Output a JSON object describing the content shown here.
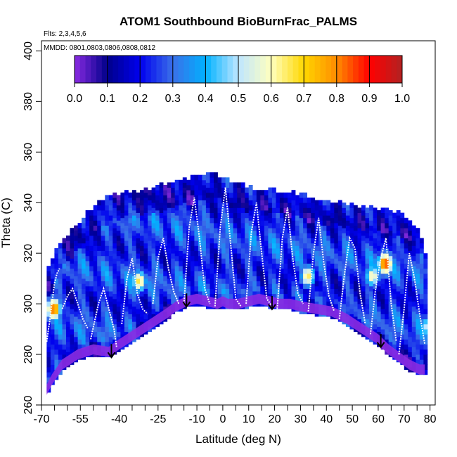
{
  "chart_data": {
    "type": "heatmap",
    "title": "ATOM1 Southbound BioBurnFrac_PALMS",
    "flights_note": "Flts: 2,3,4,5,6",
    "dates_note": "MMDD: 0801,0803,0806,0808,0812",
    "xlabel": "Latitude (deg N)",
    "ylabel": "Theta (C)",
    "xlim": [
      -70,
      82
    ],
    "ylim": [
      260,
      404
    ],
    "x_ticks": [
      -70,
      -55,
      -40,
      -25,
      -10,
      0,
      10,
      20,
      30,
      40,
      50,
      60,
      70,
      80
    ],
    "x_minor_ticks": [
      -65,
      -60,
      -50,
      -45,
      -35,
      -30,
      -20,
      -15,
      -5,
      5,
      15,
      25,
      35,
      45,
      55,
      65,
      75
    ],
    "y_ticks": [
      260,
      280,
      300,
      320,
      340,
      360,
      380,
      400
    ],
    "colorbar": {
      "ticks": [
        0.0,
        0.1,
        0.2,
        0.3,
        0.4,
        0.5,
        0.6,
        0.7,
        0.8,
        0.9,
        1.0
      ],
      "tick_labels": [
        "0.0",
        "0.1",
        "0.2",
        "0.3",
        "0.4",
        "0.5",
        "0.6",
        "0.7",
        "0.8",
        "0.9",
        "1.0"
      ],
      "colors": [
        "#8a2be2",
        "#00008b",
        "#0000ee",
        "#3a6fe8",
        "#00b2ff",
        "#bfe6ff",
        "#ffffbf",
        "#ffd700",
        "#ff8c00",
        "#ff0000",
        "#b22222"
      ]
    },
    "ground_profile": {
      "lat": [
        -68,
        -66,
        -62,
        -56,
        -50,
        -44,
        -40,
        -34,
        -28,
        -22,
        -18,
        -14,
        -10,
        -6,
        -2,
        0,
        2,
        6,
        10,
        14,
        18,
        22,
        26,
        30,
        36,
        42,
        48,
        54,
        60,
        64,
        68,
        72,
        76,
        78
      ],
      "theta": [
        264,
        268,
        274,
        278,
        280,
        279,
        282,
        286,
        290,
        294,
        297,
        299,
        300,
        299,
        298,
        299,
        298,
        298,
        299,
        300,
        299,
        298,
        298,
        297,
        296,
        295,
        292,
        288,
        284,
        280,
        277,
        274,
        272,
        272
      ]
    },
    "top_profile": {
      "lat": [
        -68,
        -66,
        -64,
        -60,
        -56,
        -52,
        -48,
        -44,
        -40,
        -36,
        -32,
        -28,
        -24,
        -20,
        -16,
        -12,
        -8,
        -4,
        0,
        4,
        8,
        12,
        16,
        20,
        24,
        28,
        32,
        36,
        40,
        44,
        48,
        52,
        56,
        60,
        64,
        68,
        72,
        76,
        78
      ],
      "theta": [
        312,
        317,
        322,
        326,
        331,
        336,
        339,
        342,
        343,
        344,
        344,
        345,
        346,
        347,
        348,
        349,
        350,
        351,
        349,
        347,
        346,
        345,
        345,
        344,
        344,
        343,
        342,
        341,
        340,
        340,
        339,
        338,
        338,
        337,
        336,
        335,
        333,
        328,
        320
      ]
    },
    "hotspots": [
      {
        "lat": -66,
        "theta": 297,
        "value": 0.85
      },
      {
        "lat": -33,
        "theta": 308,
        "value": 0.68
      },
      {
        "lat": 32,
        "theta": 310,
        "value": 0.66
      },
      {
        "lat": 57,
        "theta": 310,
        "value": 0.62
      },
      {
        "lat": 62,
        "theta": 315,
        "value": 0.88
      },
      {
        "lat": 79,
        "theta": 290,
        "value": 0.62
      }
    ],
    "flight_tracks": [
      {
        "lat": [
          -68,
          -67,
          -66,
          -65,
          -64,
          -63
        ],
        "theta": [
          285,
          292,
          300,
          308,
          312,
          314
        ]
      },
      {
        "lat": [
          -62,
          -60,
          -58,
          -56,
          -54,
          -52
        ],
        "theta": [
          298,
          303,
          306,
          300,
          294,
          290
        ]
      },
      {
        "lat": [
          -51,
          -48,
          -46,
          -44,
          -42,
          -41
        ],
        "theta": [
          286,
          300,
          306,
          298,
          290,
          283
        ]
      },
      {
        "lat": [
          -39,
          -37,
          -35,
          -33,
          -31,
          -29
        ],
        "theta": [
          292,
          310,
          318,
          304,
          298,
          296
        ]
      },
      {
        "lat": [
          -27,
          -25,
          -23,
          -21,
          -19,
          -17
        ],
        "theta": [
          300,
          318,
          326,
          314,
          305,
          300
        ]
      },
      {
        "lat": [
          -15,
          -13,
          -11,
          -9,
          -7,
          -5
        ],
        "theta": [
          300,
          330,
          342,
          326,
          306,
          300
        ]
      },
      {
        "lat": [
          -3,
          -1,
          1,
          3,
          5,
          7
        ],
        "theta": [
          299,
          330,
          346,
          324,
          302,
          299
        ]
      },
      {
        "lat": [
          9,
          11,
          13,
          15,
          17,
          19
        ],
        "theta": [
          300,
          328,
          340,
          320,
          302,
          299
        ]
      },
      {
        "lat": [
          21,
          23,
          25,
          27,
          29,
          31
        ],
        "theta": [
          298,
          326,
          338,
          318,
          304,
          300
        ]
      },
      {
        "lat": [
          33,
          35,
          37,
          39,
          41,
          43
        ],
        "theta": [
          297,
          320,
          334,
          316,
          303,
          297
        ]
      },
      {
        "lat": [
          45,
          47,
          49,
          51,
          53,
          55
        ],
        "theta": [
          294,
          312,
          326,
          322,
          304,
          292
        ]
      },
      {
        "lat": [
          57,
          59,
          61,
          63,
          65,
          67
        ],
        "theta": [
          288,
          306,
          318,
          326,
          300,
          285
        ]
      },
      {
        "lat": [
          68,
          70,
          72,
          74,
          76,
          78
        ],
        "theta": [
          280,
          298,
          320,
          310,
          296,
          284
        ]
      }
    ],
    "arrows": [
      {
        "lat": -43,
        "theta": 283
      },
      {
        "lat": -14,
        "theta": 303
      },
      {
        "lat": 19,
        "theta": 302
      },
      {
        "lat": 61,
        "theta": 287
      }
    ]
  }
}
